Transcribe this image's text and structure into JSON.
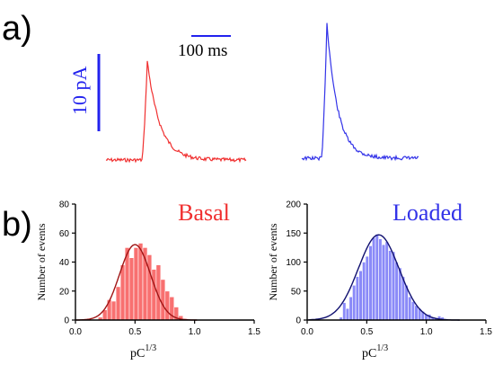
{
  "panel_labels": {
    "a": "a)",
    "b": "b)"
  },
  "scale_bars": {
    "time": "100 ms",
    "current": "10 pA"
  },
  "colors": {
    "basal": "#f03030",
    "loaded": "#3333e8",
    "basal_fit": "#a01515",
    "loaded_fit": "#101070",
    "basal_fill": "#f87070",
    "loaded_fill": "#8a8af8"
  },
  "chart_data": [
    {
      "type": "bar",
      "title": "Basal",
      "xlabel": "pC",
      "xlabel_sup": "1/3",
      "ylabel": "Number of events",
      "xlim": [
        0.0,
        1.5
      ],
      "ylim": [
        0,
        80
      ],
      "xticks": [
        "0.0",
        "0.5",
        "1.0",
        "1.5"
      ],
      "yticks": [
        "0",
        "20",
        "40",
        "60",
        "80"
      ],
      "bin_width": 0.0375,
      "bins_start": 0.19,
      "values": [
        2,
        7,
        14,
        13,
        23,
        38,
        50,
        43,
        50,
        53,
        50,
        45,
        35,
        38,
        28,
        20,
        16,
        9,
        3,
        1
      ],
      "fit": {
        "type": "gaussian",
        "peak": 52,
        "mean": 0.5,
        "sd": 0.13
      }
    },
    {
      "type": "bar",
      "title": "Loaded",
      "xlabel": "pC",
      "xlabel_sup": "1/3",
      "ylabel": "Number of events",
      "xlim": [
        0.0,
        1.5
      ],
      "ylim": [
        0,
        200
      ],
      "xticks": [
        "0.0",
        "0.5",
        "1.0",
        "1.5"
      ],
      "yticks": [
        "0",
        "50",
        "100",
        "150",
        "200"
      ],
      "bin_width": 0.0275,
      "bins_start": 0.27,
      "values": [
        5,
        30,
        20,
        40,
        60,
        75,
        85,
        100,
        110,
        128,
        142,
        148,
        140,
        130,
        135,
        120,
        118,
        100,
        90,
        75,
        60,
        40,
        32,
        25,
        20,
        15,
        10,
        10,
        5,
        3,
        7,
        5,
        2
      ],
      "fit": {
        "type": "gaussian",
        "peak": 147,
        "mean": 0.6,
        "sd": 0.17
      }
    }
  ]
}
